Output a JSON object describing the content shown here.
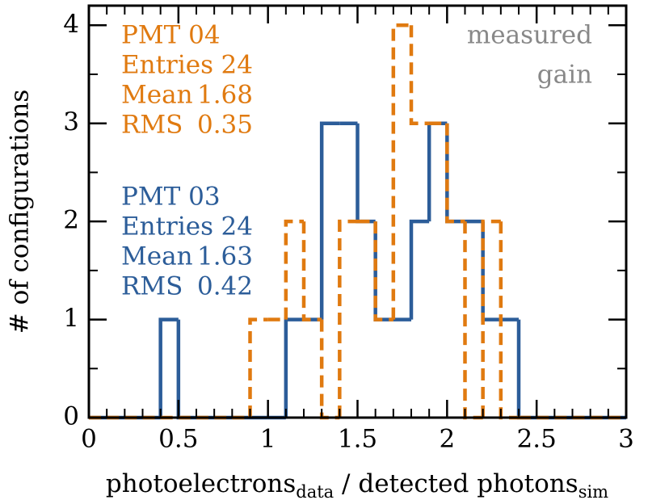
{
  "chart_data": {
    "type": "histogram",
    "bins": [
      0,
      0.1,
      0.2,
      0.3,
      0.4,
      0.5,
      0.6,
      0.7,
      0.8,
      0.9,
      1.0,
      1.1,
      1.2,
      1.3,
      1.4,
      1.5,
      1.6,
      1.7,
      1.8,
      1.9,
      2.0,
      2.1,
      2.2,
      2.3,
      2.4,
      2.5,
      2.6,
      2.7,
      2.8,
      2.9,
      3.0
    ],
    "series": [
      {
        "name": "PMT 03",
        "color": "#2c5d99",
        "dashed": false,
        "entries": 24,
        "mean": 1.63,
        "rms": 0.42,
        "values": [
          0,
          0,
          0,
          0,
          1,
          0,
          0,
          0,
          0,
          0,
          0,
          1,
          1,
          3,
          3,
          2,
          1,
          1,
          2,
          3,
          2,
          2,
          1,
          1,
          0,
          0,
          0,
          0,
          0,
          0
        ]
      },
      {
        "name": "PMT 04",
        "color": "#e07a10",
        "dashed": true,
        "entries": 24,
        "mean": 1.68,
        "rms": 0.35,
        "values": [
          0,
          0,
          0,
          0,
          0,
          0,
          0,
          0,
          0,
          1,
          1,
          2,
          1,
          0,
          2,
          2,
          1,
          4,
          3,
          3,
          2,
          0,
          2,
          0,
          0,
          0,
          0,
          0,
          0,
          0
        ]
      }
    ],
    "stats_labels": [
      "Entries",
      "Mean",
      "RMS"
    ],
    "annotation": [
      "measured",
      "gain"
    ],
    "xlabel": [
      "photoelectrons",
      "data",
      " / detected photons",
      "sim"
    ],
    "ylabel": "# of configurations",
    "xlim": [
      0,
      3
    ],
    "xticks": [
      0,
      0.5,
      1,
      1.5,
      2,
      2.5,
      3
    ],
    "ylim": [
      0,
      4.2
    ],
    "yticks": [
      0,
      1,
      2,
      3,
      4
    ]
  }
}
